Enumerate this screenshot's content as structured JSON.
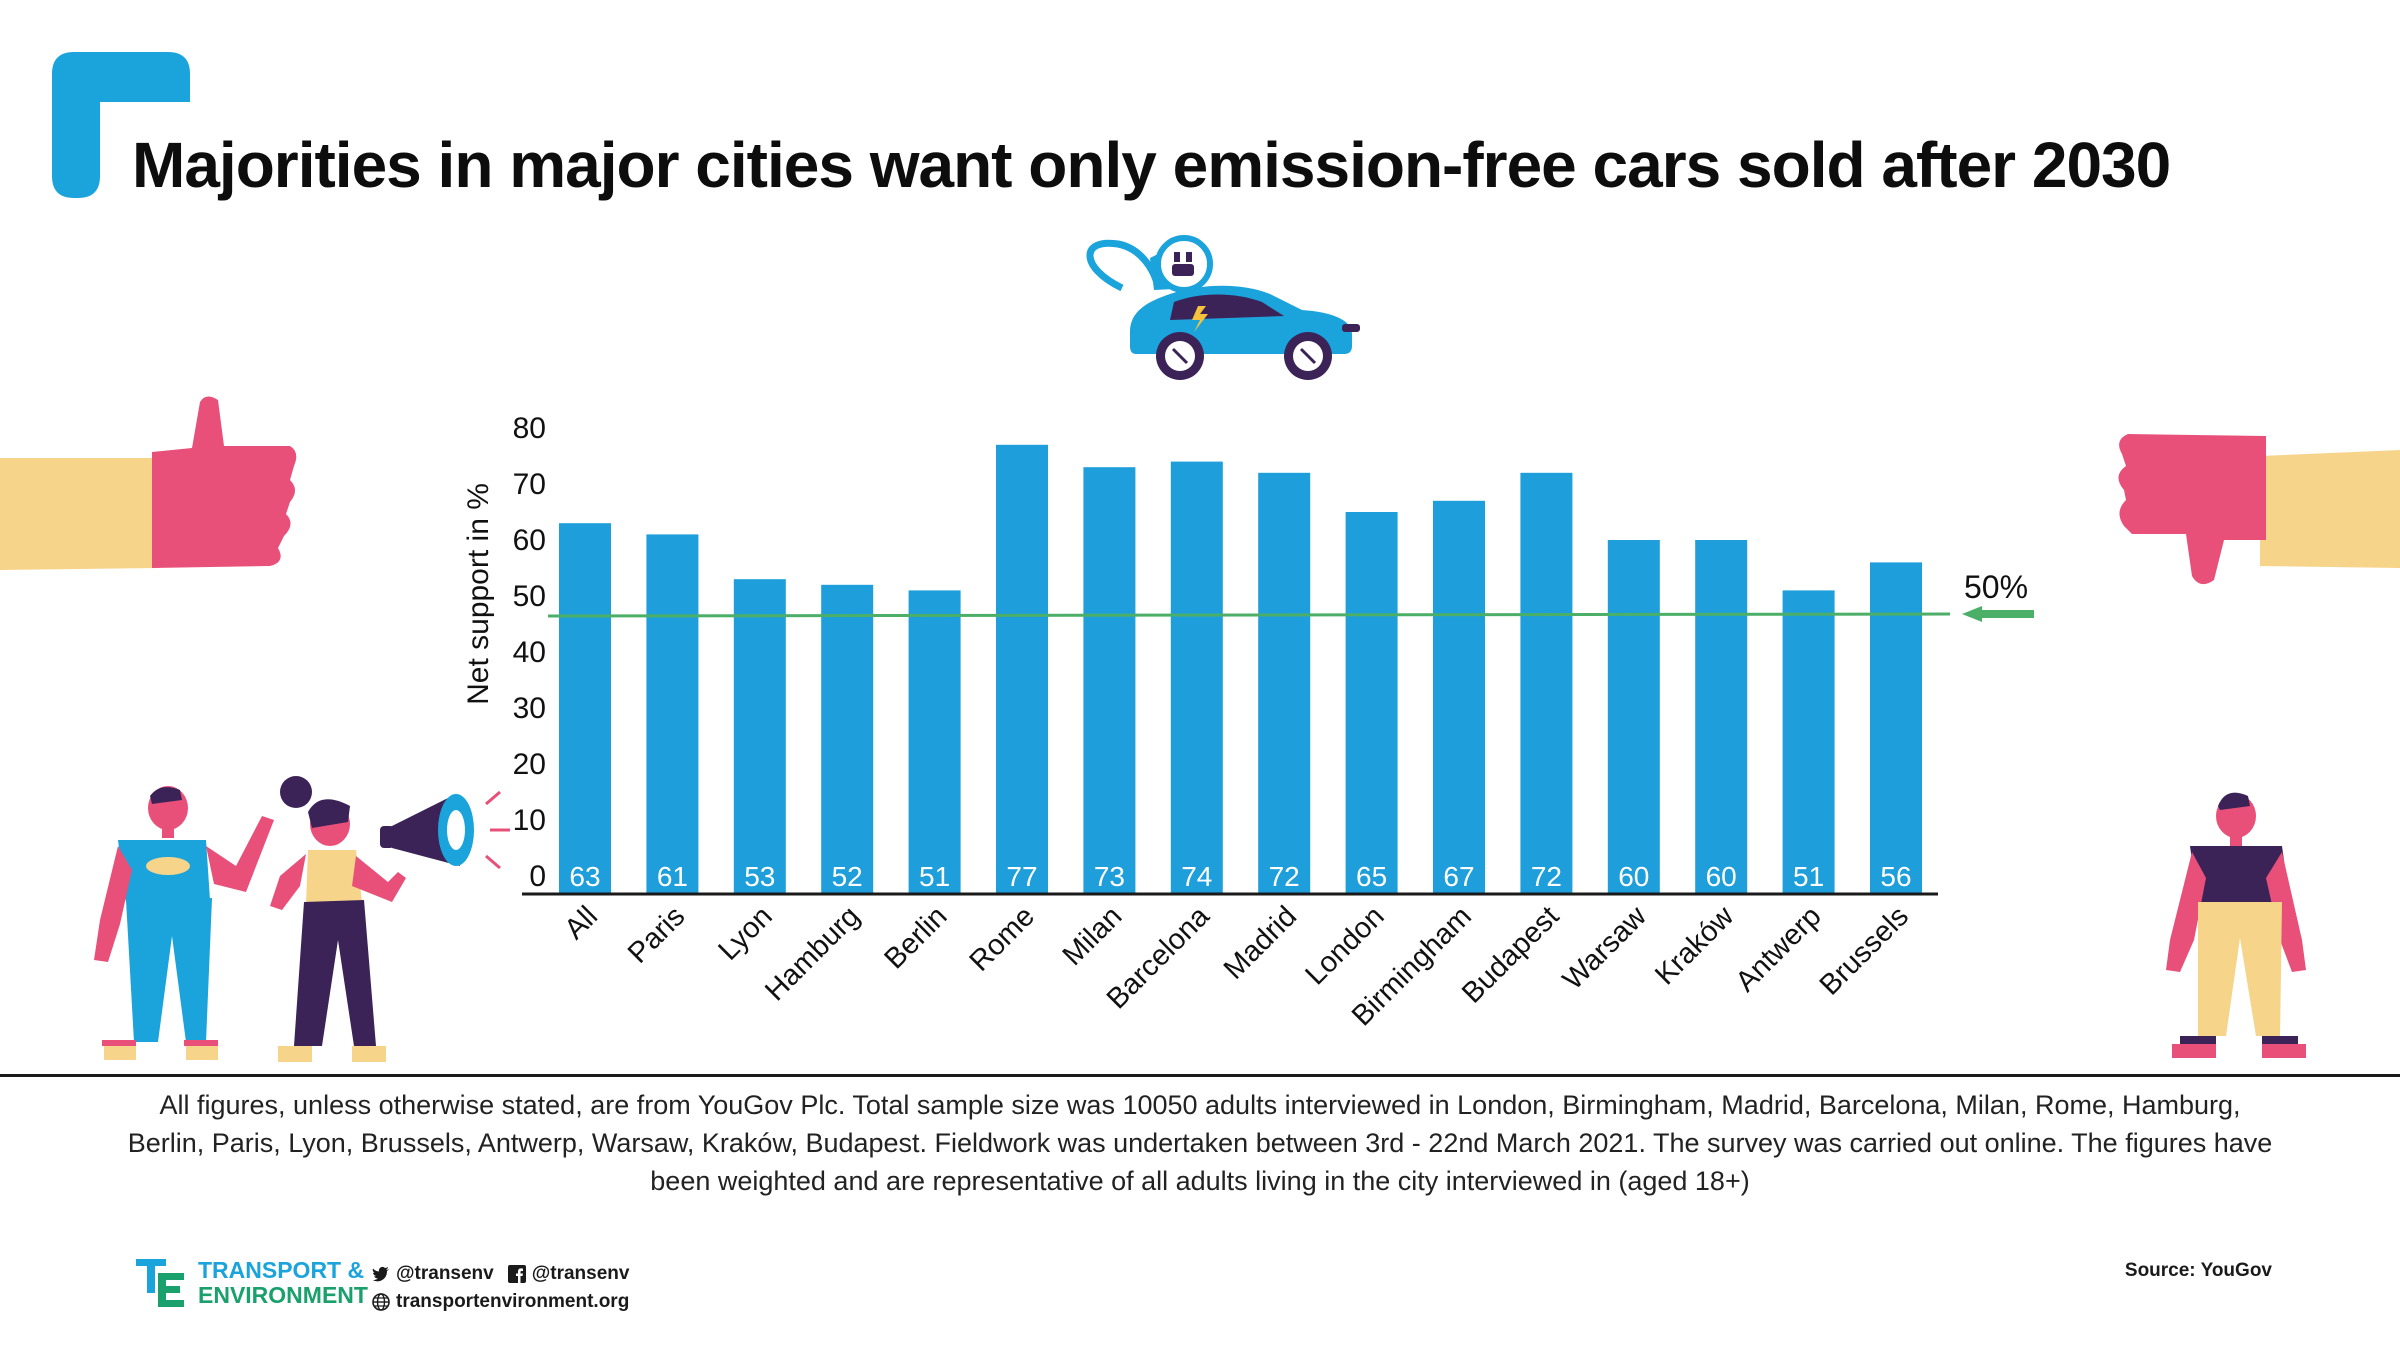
{
  "title": "Majorities in major cities want only emission-free cars sold after 2030",
  "chart_data": {
    "type": "bar",
    "title": "Majorities in major cities want only emission-free cars sold after 2030",
    "xlabel": "",
    "ylabel": "Net support in %",
    "ylim": [
      0,
      80
    ],
    "yticks": [
      0,
      10,
      20,
      30,
      40,
      50,
      60,
      70,
      80
    ],
    "categories": [
      "All",
      "Paris",
      "Lyon",
      "Hamburg",
      "Berlin",
      "Rome",
      "Milan",
      "Barcelona",
      "Madrid",
      "London",
      "Birmingham",
      "Budapest",
      "Warsaw",
      "Kraków",
      "Antwerp",
      "Brussels"
    ],
    "values": [
      63,
      61,
      53,
      52,
      51,
      77,
      73,
      74,
      72,
      65,
      67,
      72,
      60,
      60,
      51,
      56
    ],
    "reference_line": {
      "value": 50,
      "label": "50%"
    },
    "grid": false,
    "legend": "none",
    "colors": {
      "bar": "#1e9fdb",
      "reference": "#4caf68",
      "bar_label": "#ffffff"
    }
  },
  "footnote": "All figures, unless otherwise stated, are from YouGov Plc. Total sample size was 10050 adults interviewed in London, Birmingham, Madrid, Barcelona, Milan, Rome, Hamburg, Berlin, Paris, Lyon, Brussels, Antwerp, Warsaw, Kraków, Budapest. Fieldwork was undertaken between 3rd - 22nd March 2021. The survey was carried out online. The figures have been weighted and are representative of all adults living in the city interviewed in (aged 18+)",
  "logo": {
    "line1": "TRANSPORT &",
    "line2": "ENVIRONMENT"
  },
  "social": {
    "twitter": "@transenv",
    "facebook": "@transenv",
    "web": "transportenvironment.org"
  },
  "source": "Source: YouGov",
  "icons": [
    "electric-car-icon",
    "thumbs-up-icon",
    "thumbs-down-icon",
    "megaphone-icon",
    "twitter-icon",
    "facebook-icon",
    "globe-icon"
  ],
  "colors": {
    "accent": "#1ba3dc",
    "green": "#1aa06c",
    "pink": "#e8507a",
    "skin": "#f6d48a",
    "purple": "#3b2357"
  }
}
